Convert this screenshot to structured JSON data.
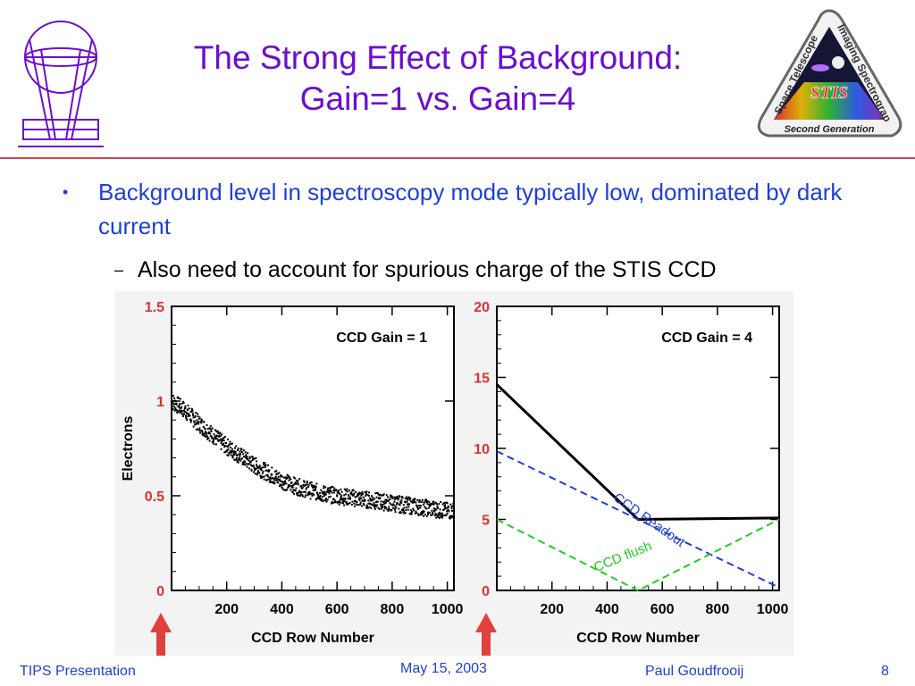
{
  "slide": {
    "title_line1": "The Strong Effect of Background:",
    "title_line2": "Gain=1 vs. Gain=4",
    "bullet_mark": "•",
    "bullet1": "Background level in spectroscopy mode typically low, dominated by dark current",
    "sub_mark": "–",
    "bullet2": "Also need to account for spurious charge of the STIS CCD",
    "accent_title": "#6b0fcf",
    "accent_text": "#1f3fd8",
    "rule_color": "#c94a4a"
  },
  "logo": {
    "line1": "Space Telescope",
    "line2": "Imaging Spectrograph",
    "center": "STIS",
    "bottom": "Second Generation"
  },
  "footer": {
    "left": "TIPS Presentation",
    "center": "May 15, 2003",
    "right_name": "Paul Goudfrooij",
    "page": "8"
  },
  "chart_data": [
    {
      "type": "scatter",
      "title": "CCD Gain = 1",
      "xlabel": "CCD Row Number",
      "ylabel": "Electrons",
      "xlim": [
        0,
        1024
      ],
      "ylim": [
        0,
        1.5
      ],
      "xticks": [
        "200",
        "400",
        "600",
        "800",
        "1000"
      ],
      "yticks": [
        "0",
        "0.5",
        "1",
        "1.5"
      ],
      "series": [
        {
          "x": [
            0,
            50,
            100,
            150,
            200,
            250,
            300,
            350,
            400,
            450,
            500,
            550,
            600,
            650,
            700,
            750,
            800,
            850,
            900,
            950,
            1000,
            1024
          ],
          "y": [
            1.0,
            0.95,
            0.88,
            0.82,
            0.76,
            0.71,
            0.66,
            0.62,
            0.58,
            0.55,
            0.53,
            0.51,
            0.5,
            0.49,
            0.48,
            0.47,
            0.46,
            0.45,
            0.44,
            0.43,
            0.42,
            0.42
          ]
        }
      ],
      "marker_arrow_at_x": 0
    },
    {
      "type": "line",
      "title": "CCD Gain = 4",
      "xlabel": "CCD Row Number",
      "ylabel": "",
      "xlim": [
        0,
        1024
      ],
      "ylim": [
        0,
        20
      ],
      "xticks": [
        "200",
        "400",
        "600",
        "800",
        "1000"
      ],
      "yticks": [
        "0",
        "5",
        "10",
        "15",
        "20"
      ],
      "series": [
        {
          "x": [
            0,
            512,
            1024
          ],
          "y": [
            14.5,
            5.0,
            5.1
          ],
          "color": "#000000"
        },
        {
          "name": "CCD Readout",
          "x": [
            0,
            1024
          ],
          "y": [
            9.8,
            0.2
          ],
          "color": "#1f3fd8"
        },
        {
          "name": "CCD  flush",
          "x": [
            0,
            512,
            1024
          ],
          "y": [
            5.0,
            0.0,
            5.0
          ],
          "color": "#22cc22"
        }
      ],
      "marker_arrow_at_x": 0
    }
  ]
}
